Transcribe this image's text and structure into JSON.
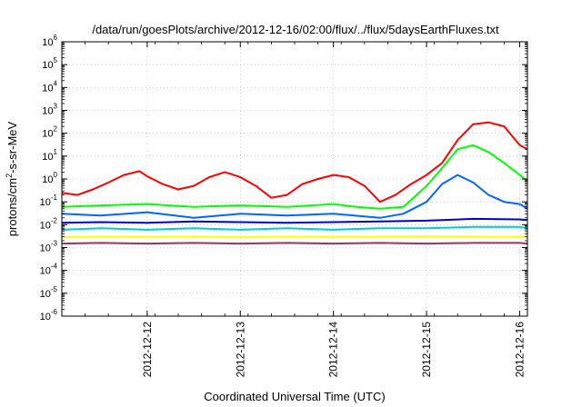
{
  "chart_data": {
    "type": "line",
    "title": "/data/run/goesPlots/archive/2012-12-16/02:00/flux/../flux/5daysEarthFluxes.txt",
    "xlabel": "Coordinated Universal Time (UTC)",
    "ylabel": {
      "prefix": "protons/cm",
      "sup": "2",
      "suffix": "-s-sr-MeV"
    },
    "y_scale": "log",
    "ylim": [
      1e-06,
      1000000.0
    ],
    "y_ticks": [
      {
        "value": 1e-06,
        "base": "10",
        "exp": "-6"
      },
      {
        "value": 1e-05,
        "base": "10",
        "exp": "-5"
      },
      {
        "value": 0.0001,
        "base": "10",
        "exp": "-4"
      },
      {
        "value": 0.001,
        "base": "10",
        "exp": "-3"
      },
      {
        "value": 0.01,
        "base": "10",
        "exp": "-2"
      },
      {
        "value": 0.1,
        "base": "10",
        "exp": "-1"
      },
      {
        "value": 1.0,
        "base": "10",
        "exp": "0"
      },
      {
        "value": 10.0,
        "base": "10",
        "exp": "1"
      },
      {
        "value": 100.0,
        "base": "10",
        "exp": "2"
      },
      {
        "value": 1000.0,
        "base": "10",
        "exp": "3"
      },
      {
        "value": 10000.0,
        "base": "10",
        "exp": "4"
      },
      {
        "value": 100000.0,
        "base": "10",
        "exp": "5"
      },
      {
        "value": 1000000.0,
        "base": "10",
        "exp": "6"
      }
    ],
    "x_range": [
      "2012-12-11T02:00",
      "2012-12-16T02:00"
    ],
    "x_ticks": [
      "2012-12-12",
      "2012-12-13",
      "2012-12-14",
      "2012-12-15",
      "2012-12-16"
    ],
    "grid": true,
    "legend": "none",
    "series": [
      {
        "color": "#ff0000",
        "x": [
          "2012-12-11T02:00",
          "2012-12-11T06:00",
          "2012-12-11T10:00",
          "2012-12-11T14:00",
          "2012-12-11T18:00",
          "2012-12-11T22:00",
          "2012-12-12T00:00",
          "2012-12-12T04:00",
          "2012-12-12T08:00",
          "2012-12-12T12:00",
          "2012-12-12T16:00",
          "2012-12-12T20:00",
          "2012-12-13T00:00",
          "2012-12-13T04:00",
          "2012-12-13T08:00",
          "2012-12-13T12:00",
          "2012-12-13T16:00",
          "2012-12-13T20:00",
          "2012-12-14T00:00",
          "2012-12-14T04:00",
          "2012-12-14T08:00",
          "2012-12-14T12:00",
          "2012-12-14T16:00",
          "2012-12-14T20:00",
          "2012-12-15T00:00",
          "2012-12-15T04:00",
          "2012-12-15T08:00",
          "2012-12-15T12:00",
          "2012-12-15T16:00",
          "2012-12-15T20:00",
          "2012-12-16T00:00",
          "2012-12-16T02:00"
        ],
        "y": [
          0.25,
          0.2,
          0.35,
          0.7,
          1.5,
          2.2,
          1.3,
          0.6,
          0.35,
          0.5,
          1.2,
          2.0,
          1.2,
          0.5,
          0.15,
          0.2,
          0.6,
          1.0,
          1.5,
          1.2,
          0.5,
          0.1,
          0.2,
          0.6,
          1.5,
          5,
          50,
          250,
          300,
          200,
          30,
          20
        ]
      },
      {
        "color": "#00ff00",
        "x": [
          "2012-12-11T02:00",
          "2012-12-11T12:00",
          "2012-12-12T00:00",
          "2012-12-12T12:00",
          "2012-12-13T00:00",
          "2012-12-13T12:00",
          "2012-12-14T00:00",
          "2012-12-14T06:00",
          "2012-12-14T12:00",
          "2012-12-14T18:00",
          "2012-12-15T00:00",
          "2012-12-15T04:00",
          "2012-12-15T08:00",
          "2012-12-15T12:00",
          "2012-12-15T16:00",
          "2012-12-15T20:00",
          "2012-12-16T00:00",
          "2012-12-16T02:00"
        ],
        "y": [
          0.06,
          0.07,
          0.08,
          0.06,
          0.07,
          0.06,
          0.08,
          0.06,
          0.05,
          0.06,
          0.5,
          3,
          20,
          30,
          15,
          5,
          1.5,
          0.8
        ]
      },
      {
        "color": "#0066ff",
        "x": [
          "2012-12-11T02:00",
          "2012-12-11T12:00",
          "2012-12-12T00:00",
          "2012-12-12T12:00",
          "2012-12-13T00:00",
          "2012-12-13T12:00",
          "2012-12-14T00:00",
          "2012-12-14T12:00",
          "2012-12-14T18:00",
          "2012-12-15T00:00",
          "2012-12-15T04:00",
          "2012-12-15T08:00",
          "2012-12-15T12:00",
          "2012-12-15T16:00",
          "2012-12-15T20:00",
          "2012-12-16T00:00",
          "2012-12-16T02:00"
        ],
        "y": [
          0.03,
          0.025,
          0.035,
          0.02,
          0.03,
          0.025,
          0.03,
          0.02,
          0.03,
          0.1,
          0.6,
          1.5,
          0.7,
          0.2,
          0.1,
          0.08,
          0.05
        ]
      },
      {
        "color": "#0000cc",
        "x": [
          "2012-12-11T02:00",
          "2012-12-11T12:00",
          "2012-12-12T00:00",
          "2012-12-12T12:00",
          "2012-12-13T00:00",
          "2012-12-13T12:00",
          "2012-12-14T00:00",
          "2012-12-14T12:00",
          "2012-12-15T00:00",
          "2012-12-15T12:00",
          "2012-12-16T00:00",
          "2012-12-16T02:00"
        ],
        "y": [
          0.012,
          0.013,
          0.012,
          0.014,
          0.013,
          0.012,
          0.013,
          0.014,
          0.015,
          0.018,
          0.017,
          0.016
        ]
      },
      {
        "color": "#00cccc",
        "x": [
          "2012-12-11T02:00",
          "2012-12-11T12:00",
          "2012-12-12T00:00",
          "2012-12-12T12:00",
          "2012-12-13T00:00",
          "2012-12-13T12:00",
          "2012-12-14T00:00",
          "2012-12-14T12:00",
          "2012-12-15T00:00",
          "2012-12-15T12:00",
          "2012-12-16T00:00",
          "2012-12-16T02:00"
        ],
        "y": [
          0.006,
          0.007,
          0.006,
          0.007,
          0.006,
          0.007,
          0.006,
          0.007,
          0.007,
          0.008,
          0.008,
          0.007
        ]
      },
      {
        "color": "#ffff00",
        "x": [
          "2012-12-11T02:00",
          "2012-12-11T12:00",
          "2012-12-12T00:00",
          "2012-12-12T12:00",
          "2012-12-13T00:00",
          "2012-12-13T12:00",
          "2012-12-14T00:00",
          "2012-12-14T12:00",
          "2012-12-15T00:00",
          "2012-12-15T12:00",
          "2012-12-16T00:00",
          "2012-12-16T02:00"
        ],
        "y": [
          0.0028,
          0.003,
          0.0029,
          0.003,
          0.0028,
          0.003,
          0.0029,
          0.003,
          0.0031,
          0.003,
          0.0029,
          0.003
        ]
      },
      {
        "color": "#993366",
        "x": [
          "2012-12-11T02:00",
          "2012-12-11T12:00",
          "2012-12-12T00:00",
          "2012-12-12T12:00",
          "2012-12-13T00:00",
          "2012-12-13T12:00",
          "2012-12-14T00:00",
          "2012-12-14T12:00",
          "2012-12-15T00:00",
          "2012-12-15T12:00",
          "2012-12-16T00:00",
          "2012-12-16T02:00"
        ],
        "y": [
          0.0015,
          0.0016,
          0.0015,
          0.0016,
          0.0015,
          0.0016,
          0.0015,
          0.0016,
          0.0015,
          0.0016,
          0.0016,
          0.0015
        ]
      }
    ]
  }
}
